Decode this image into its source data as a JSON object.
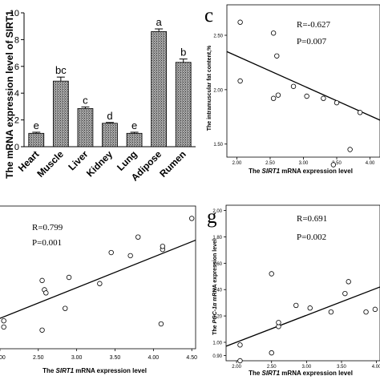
{
  "chart_data": [
    {
      "id": "panel_bar",
      "type": "bar",
      "ylabel": "The mRNA expression level of SIRT1",
      "ylim": [
        0,
        10
      ],
      "yticks": [
        "0",
        "2",
        "4",
        "6",
        "8",
        "10"
      ],
      "categories": [
        "Heart",
        "Muscle",
        "Liver",
        "Kidney",
        "Lung",
        "Adipose",
        "Rumen"
      ],
      "values": [
        1.0,
        4.9,
        2.85,
        1.75,
        1.0,
        8.6,
        6.3
      ],
      "errors": [
        0.08,
        0.3,
        0.12,
        0.06,
        0.08,
        0.2,
        0.25
      ],
      "letters": [
        "e",
        "bc",
        "c",
        "d",
        "e",
        "a",
        "b"
      ]
    },
    {
      "id": "panel_c",
      "type": "scatter",
      "panel_letter": "c",
      "xlabel_prefix": "The",
      "xlabel_gene": "SIRT1",
      "xlabel_suffix": "mRNA expression level",
      "ylabel": "The intramuscular fat content,%",
      "r_text": "R=-0.627",
      "p_text": "P=0.007",
      "xlim": [
        1.85,
        4.15
      ],
      "ylim": [
        1.38,
        2.78
      ],
      "xticks": [
        "2.00",
        "2.50",
        "3.00",
        "3.50",
        "4.00"
      ],
      "yticks": [
        "1.50",
        "2.00",
        "2.50"
      ],
      "points": [
        [
          2.05,
          2.62
        ],
        [
          2.05,
          2.08
        ],
        [
          2.55,
          2.52
        ],
        [
          2.6,
          2.31
        ],
        [
          2.55,
          1.92
        ],
        [
          2.62,
          1.95
        ],
        [
          2.85,
          2.03
        ],
        [
          3.05,
          1.94
        ],
        [
          3.3,
          1.92
        ],
        [
          3.45,
          1.31
        ],
        [
          3.5,
          1.88
        ],
        [
          3.7,
          1.45
        ],
        [
          3.85,
          1.79
        ]
      ],
      "fit": [
        [
          1.85,
          2.35
        ],
        [
          4.15,
          1.72
        ]
      ]
    },
    {
      "id": "panel_f",
      "type": "scatter",
      "r_text": "R=0.799",
      "p_text": "P=0.001",
      "xlabel_prefix": "The",
      "xlabel_gene": "SIRT1",
      "xlabel_suffix": "mRNA expression level",
      "xlim": [
        1.98,
        4.55
      ],
      "xticks": [
        "2.00",
        "2.50",
        "3.00",
        "3.50",
        "4.00",
        "4.50"
      ],
      "points": [
        [
          2.05,
          1.15
        ],
        [
          2.05,
          1.25
        ],
        [
          2.55,
          1.1
        ],
        [
          2.55,
          1.9
        ],
        [
          2.58,
          1.75
        ],
        [
          2.6,
          1.7
        ],
        [
          2.85,
          1.45
        ],
        [
          2.9,
          1.95
        ],
        [
          3.3,
          1.85
        ],
        [
          3.45,
          2.35
        ],
        [
          3.7,
          2.3
        ],
        [
          3.8,
          2.6
        ],
        [
          4.1,
          1.2
        ],
        [
          4.12,
          2.4
        ],
        [
          4.12,
          2.45
        ],
        [
          4.5,
          2.9
        ]
      ],
      "fit": [
        [
          1.98,
          1.28
        ],
        [
          4.55,
          2.55
        ]
      ]
    },
    {
      "id": "panel_g",
      "type": "scatter",
      "panel_letter": "g",
      "xlabel_prefix": "The",
      "xlabel_gene": "SIRT1",
      "xlabel_suffix": "mRNA expression level",
      "ylabel_prefix": "The",
      "ylabel_gene": "PGC-1α",
      "ylabel_suffix": "mRNA expression level",
      "r_text": "R=0.691",
      "p_text": "P=0.002",
      "xlim": [
        1.85,
        4.05
      ],
      "ylim": [
        0.86,
        2.04
      ],
      "xticks": [
        "2.00",
        "2.50",
        "3.00",
        "3.50",
        "4.00"
      ],
      "yticks": [
        "0.90",
        "1.00",
        "1.20",
        "1.40",
        "1.60",
        "1.80",
        "2.00"
      ],
      "points": [
        [
          2.05,
          0.86
        ],
        [
          2.05,
          0.98
        ],
        [
          2.5,
          0.92
        ],
        [
          2.5,
          1.52
        ],
        [
          2.6,
          1.12
        ],
        [
          2.6,
          1.15
        ],
        [
          2.85,
          1.28
        ],
        [
          3.05,
          1.26
        ],
        [
          3.35,
          1.23
        ],
        [
          3.55,
          1.37
        ],
        [
          3.6,
          1.46
        ],
        [
          3.85,
          1.23
        ],
        [
          3.98,
          1.25
        ]
      ],
      "fit": [
        [
          1.85,
          0.97
        ],
        [
          4.05,
          1.42
        ]
      ]
    }
  ]
}
